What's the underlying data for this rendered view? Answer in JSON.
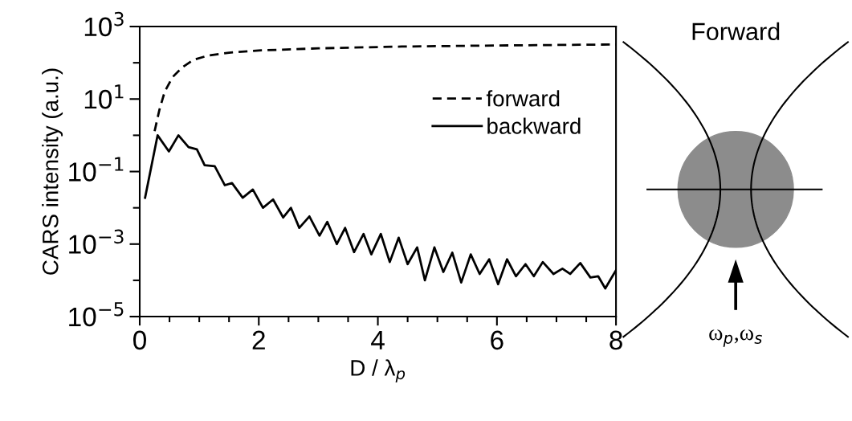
{
  "chart_data": {
    "type": "line",
    "xlabel": "D / λ$_{p}$",
    "ylabel": "CARS intensity (a.u.)",
    "log": "y",
    "xlim": [
      0,
      8
    ],
    "ylim": [
      1e-05,
      1000
    ],
    "xticks": [
      0,
      {
        "value": 0.5,
        "label": null
      },
      {
        "value": 1,
        "label": null
      },
      {
        "value": 1.5,
        "label": null
      },
      2,
      {
        "value": 2.5,
        "label": null
      },
      {
        "value": 3,
        "label": null
      },
      {
        "value": 3.5,
        "label": null
      },
      4,
      {
        "value": 4.5,
        "label": null
      },
      {
        "value": 5,
        "label": null
      },
      {
        "value": 5.5,
        "label": null
      },
      6,
      {
        "value": 6.5,
        "label": null
      },
      {
        "value": 7,
        "label": null
      },
      {
        "value": 7.5,
        "label": null
      },
      8
    ],
    "yticks": [
      {
        "value": 1e-05,
        "label": "10$^{−5}$"
      },
      {
        "value": 0.0001,
        "label": null
      },
      {
        "value": 0.001,
        "label": "10$^{−3}$"
      },
      {
        "value": 0.01,
        "label": null
      },
      {
        "value": 0.1,
        "label": "10$^{−1}$"
      },
      {
        "value": 1,
        "label": null
      },
      {
        "value": 10,
        "label": "10$^{1}$"
      },
      {
        "value": 100,
        "label": null
      },
      {
        "value": 1000,
        "label": "10$^{3}$"
      }
    ],
    "grid": false,
    "legend": "top right",
    "marker": "none",
    "series": [
      {
        "name": "forward",
        "color": "#000000",
        "line_style": "dashed",
        "x": [
          0.25,
          0.33,
          0.42,
          0.55,
          0.72,
          0.9,
          1.16,
          1.5,
          2.04,
          3,
          4.4,
          6,
          8
        ],
        "values": [
          1.3,
          5,
          16,
          40,
          76,
          120,
          160,
          190,
          220,
          250,
          280,
          300,
          320
        ]
      },
      {
        "name": "backward",
        "color": "#000000",
        "line_style": "solid",
        "x": [
          0.09,
          0.3,
          0.49,
          0.65,
          0.82,
          0.96,
          1.09,
          1.26,
          1.43,
          1.55,
          1.73,
          1.9,
          2.07,
          2.24,
          2.41,
          2.54,
          2.68,
          2.85,
          3.02,
          3.15,
          3.31,
          3.45,
          3.6,
          3.76,
          3.89,
          4.05,
          4.2,
          4.35,
          4.5,
          4.66,
          4.79,
          4.95,
          5.1,
          5.25,
          5.4,
          5.56,
          5.71,
          5.87,
          6.02,
          6.17,
          6.32,
          6.48,
          6.62,
          6.77,
          6.95,
          7.1,
          7.23,
          7.4,
          7.57,
          7.7,
          7.82,
          8
        ],
        "values": [
          0.019,
          1.0,
          0.36,
          1.0,
          0.47,
          0.41,
          0.15,
          0.14,
          0.042,
          0.048,
          0.019,
          0.032,
          0.01,
          0.017,
          0.0054,
          0.01,
          0.0028,
          0.0058,
          0.0017,
          0.0041,
          0.001,
          0.0028,
          0.0006,
          0.0019,
          0.00052,
          0.0019,
          0.00032,
          0.0015,
          0.00028,
          0.00081,
          0.0001,
          0.00081,
          0.00017,
          0.00058,
          8.7e-05,
          0.00052,
          0.00015,
          0.00038,
          7.8e-05,
          0.00038,
          0.00013,
          0.00028,
          0.00013,
          0.00032,
          0.00015,
          0.00021,
          0.00015,
          0.0003,
          0.00012,
          0.00013,
          6e-05,
          0.00019
        ]
      }
    ],
    "annotations": [
      "Forward",
      "ω$_{p}$,ω$_{s}$"
    ]
  }
}
